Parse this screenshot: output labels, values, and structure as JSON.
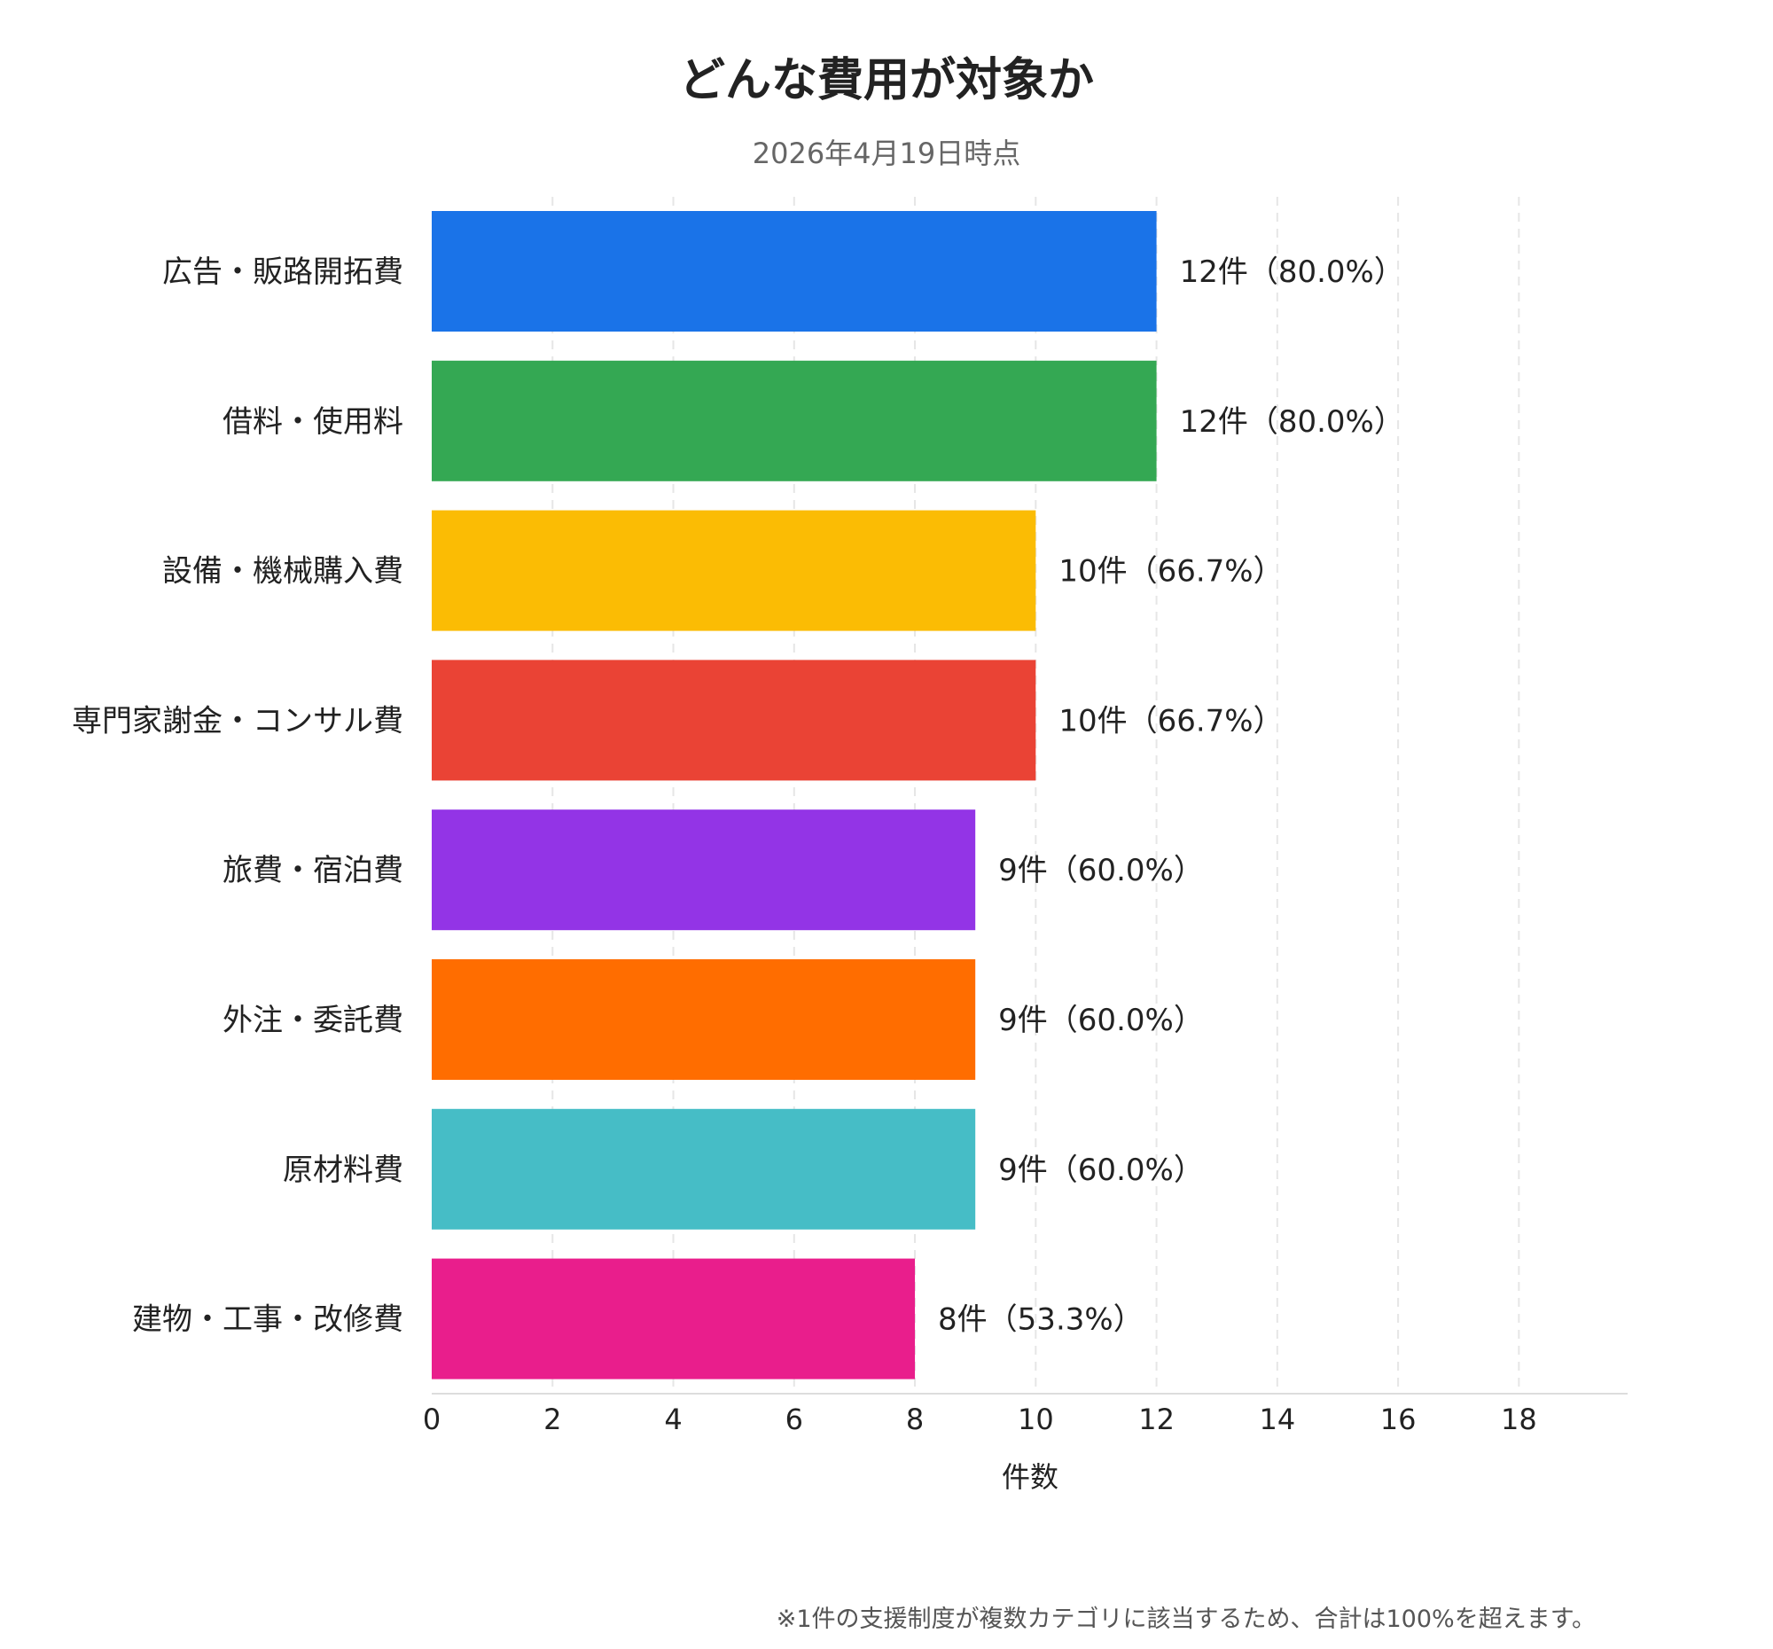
{
  "chart_data": {
    "type": "bar",
    "orientation": "horizontal",
    "title": "どんな費用が対象か",
    "subtitle": "2026年4月19日時点",
    "xlabel": "件数",
    "ylabel": "",
    "xlim": [
      0,
      19.8
    ],
    "xticks": [
      0,
      2,
      4,
      6,
      8,
      10,
      12,
      14,
      16,
      18
    ],
    "grid": true,
    "categories": [
      "広告・販路開拓費",
      "借料・使用料",
      "設備・機械購入費",
      "専門家謝金・コンサル費",
      "旅費・宿泊費",
      "外注・委託費",
      "原材料費",
      "建物・工事・改修費"
    ],
    "values": [
      12,
      12,
      10,
      10,
      9,
      9,
      9,
      8
    ],
    "data_labels": [
      "12件（80.0%）",
      "12件（80.0%）",
      "10件（66.7%）",
      "10件（66.7%）",
      "9件（60.0%）",
      "9件（60.0%）",
      "9件（60.0%）",
      "8件（53.3%）"
    ],
    "colors": [
      "#1a73e8",
      "#34a853",
      "#fbbc04",
      "#ea4335",
      "#9334e6",
      "#ff6d00",
      "#46bdc6",
      "#e91e8c"
    ]
  },
  "footnote": "※1件の支援制度が複数カテゴリに該当するため、合計は100%を超えます。"
}
